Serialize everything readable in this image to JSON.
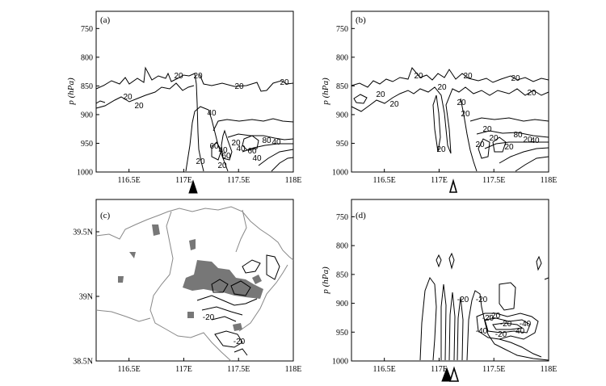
{
  "chart_data": [
    {
      "type": "contour",
      "panel": "(a)",
      "xlabel": "",
      "ylabel": "p (hPa)",
      "xlim": [
        116.2,
        118.0
      ],
      "ylim": [
        1000,
        720
      ],
      "x_tick_labels": [
        "116.5E",
        "117E",
        "117.5E",
        "118E"
      ],
      "x_ticks": [
        116.5,
        117.0,
        117.5,
        118.0
      ],
      "y_tick_labels": [
        "750",
        "800",
        "850",
        "900",
        "950",
        "1000"
      ],
      "y_ticks": [
        750,
        800,
        850,
        900,
        950,
        1000
      ],
      "contour_labels": [
        "20",
        "20",
        "20",
        "20",
        "20",
        "40",
        "20",
        "20",
        "40",
        "60",
        "60",
        "40",
        "20",
        "40",
        "20",
        "80",
        "40",
        "60"
      ],
      "markers": [
        {
          "type": "filled-triangle",
          "x": 117.07
        }
      ]
    },
    {
      "type": "contour",
      "panel": "(b)",
      "xlabel": "",
      "ylabel": "p (hPa)",
      "xlim": [
        116.2,
        118.0
      ],
      "ylim": [
        1000,
        720
      ],
      "x_tick_labels": [
        "116.5E",
        "117E",
        "117.5E",
        "118E"
      ],
      "x_ticks": [
        116.5,
        117.0,
        117.5,
        118.0
      ],
      "y_tick_labels": [
        "750",
        "800",
        "850",
        "900",
        "950",
        "1000"
      ],
      "y_ticks": [
        750,
        800,
        850,
        900,
        950,
        1000
      ],
      "contour_labels": [
        "20",
        "20",
        "20",
        "20",
        "20",
        "20",
        "20",
        "20",
        "20",
        "20",
        "20",
        "80",
        "40",
        "20",
        "20",
        "20",
        "20"
      ],
      "markers": [
        {
          "type": "open-triangle",
          "x": 117.12
        }
      ]
    },
    {
      "type": "map",
      "panel": "(c)",
      "xlim": [
        116.2,
        118.0
      ],
      "ylim": [
        38.5,
        39.75
      ],
      "x_tick_labels": [
        "116.5E",
        "117E",
        "117.5E",
        "118E"
      ],
      "x_ticks": [
        116.5,
        117.0,
        117.5,
        118.0
      ],
      "y_tick_labels": [
        "38.5N",
        "39N",
        "39.5N"
      ],
      "y_ticks": [
        38.5,
        39.0,
        39.5
      ],
      "contour_labels": [
        "-20",
        "-20"
      ],
      "shading": "grey"
    },
    {
      "type": "contour",
      "panel": "(d)",
      "xlabel": "",
      "ylabel": "p (hPa)",
      "xlim": [
        116.2,
        118.0
      ],
      "ylim": [
        1000,
        720
      ],
      "x_tick_labels": [
        "116.5E",
        "117E",
        "117.5E",
        "118E"
      ],
      "x_ticks": [
        116.5,
        117.0,
        117.5,
        118.0
      ],
      "y_tick_labels": [
        "750",
        "800",
        "850",
        "900",
        "950",
        "1000"
      ],
      "y_ticks": [
        750,
        800,
        850,
        900,
        950,
        1000
      ],
      "contour_labels": [
        "-20",
        "-20",
        "-20",
        "-40",
        "-20",
        "-40",
        "-20",
        "-20",
        "-40"
      ],
      "markers": [
        {
          "type": "filled-triangle",
          "x": 117.07
        },
        {
          "type": "open-triangle",
          "x": 117.12
        }
      ]
    }
  ]
}
